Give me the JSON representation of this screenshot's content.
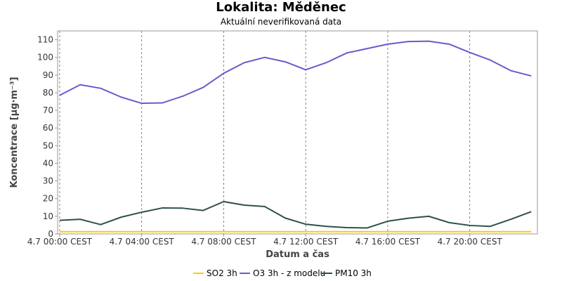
{
  "chart_data": {
    "type": "line",
    "title": "Lokalita: Měděnec",
    "subtitle": "Aktuální neverifikovaná data",
    "xlabel": "Datum a čas",
    "ylabel": "Koncentrace [µg·m⁻³]",
    "ylim": [
      0,
      115
    ],
    "y_ticks": [
      0,
      10,
      20,
      30,
      40,
      50,
      60,
      70,
      80,
      90,
      100,
      110
    ],
    "xlim": [
      -0.1,
      23.3
    ],
    "x_ticks": [
      {
        "x": 0,
        "label": "4.7 00:00 CEST"
      },
      {
        "x": 4,
        "label": "4.7 04:00 CEST"
      },
      {
        "x": 8,
        "label": "4.7 08:00 CEST"
      },
      {
        "x": 12,
        "label": "4.7 12:00 CEST"
      },
      {
        "x": 16,
        "label": "4.7 16:00 CEST"
      },
      {
        "x": 20,
        "label": "4.7 20:00 CEST"
      }
    ],
    "x": [
      0,
      1,
      2,
      3,
      4,
      5,
      6,
      7,
      8,
      9,
      10,
      11,
      12,
      13,
      14,
      15,
      16,
      17,
      18,
      19,
      20,
      21,
      22,
      23
    ],
    "grid": true,
    "legend_position": "bottom",
    "series": [
      {
        "name": "SO2 3h",
        "color": "#ffcc00",
        "values": [
          1.3,
          1.3,
          1.3,
          1.3,
          1.3,
          1.3,
          1.3,
          1.3,
          1.3,
          1.3,
          1.3,
          1.3,
          1.3,
          1.3,
          1.3,
          1.3,
          1.3,
          1.3,
          1.3,
          1.3,
          1.3,
          1.3,
          1.3,
          1.3
        ]
      },
      {
        "name": "O3 3h - z modelu",
        "color": "#6a5acd",
        "values": [
          78.5,
          84.5,
          82.5,
          77.5,
          74,
          74.2,
          78,
          83,
          91,
          97,
          100,
          97.5,
          93,
          97,
          102.5,
          105,
          107.5,
          109,
          109.2,
          107.5,
          102.8,
          98.5,
          92.5,
          89.5
        ]
      },
      {
        "name": "PM10 3h",
        "color": "#2f4f4f",
        "values": [
          7.7,
          8.3,
          5.3,
          9.5,
          12.3,
          14.7,
          14.6,
          13.3,
          18.3,
          16.3,
          15.5,
          9,
          5.5,
          4.3,
          3.6,
          3.4,
          7.2,
          8.9,
          10,
          6.4,
          4.8,
          4.3,
          8.3,
          12.6
        ]
      }
    ]
  }
}
